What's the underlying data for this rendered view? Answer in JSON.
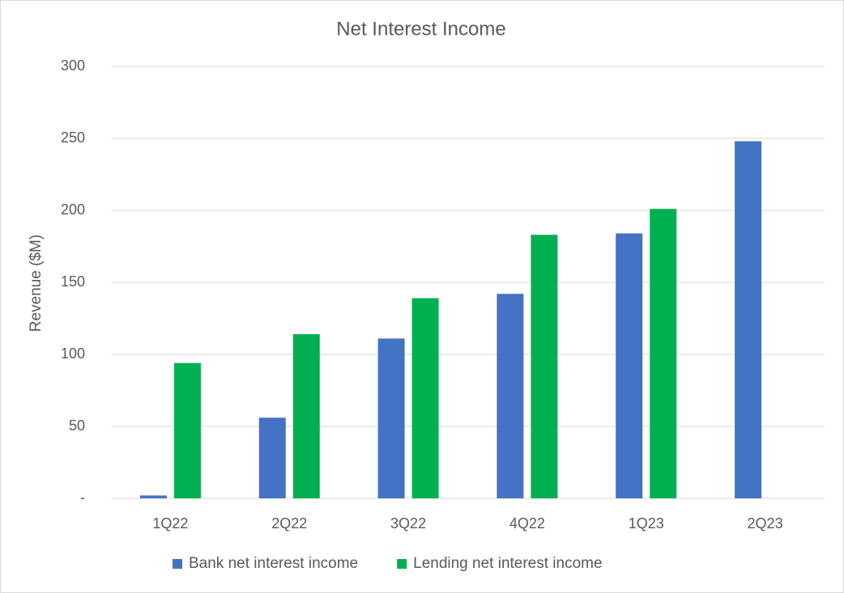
{
  "chart_data": {
    "type": "bar",
    "title": "Net Interest Income",
    "y_label": "Revenue ($M)",
    "categories": [
      "1Q22",
      "2Q22",
      "3Q22",
      "4Q22",
      "1Q23",
      "2Q23"
    ],
    "series": [
      {
        "name": "Bank net interest income",
        "color": "#4472c4",
        "values": [
          2,
          56,
          111,
          142,
          184,
          248
        ]
      },
      {
        "name": "Lending net interest income",
        "color": "#00b050",
        "values": [
          94,
          114,
          139,
          183,
          201,
          null
        ]
      }
    ],
    "ylim": [
      0,
      300
    ],
    "yticks": [
      {
        "value": 0,
        "label": "-"
      },
      50,
      100,
      150,
      200,
      250,
      300
    ],
    "grid": true,
    "legend": "bottom"
  }
}
